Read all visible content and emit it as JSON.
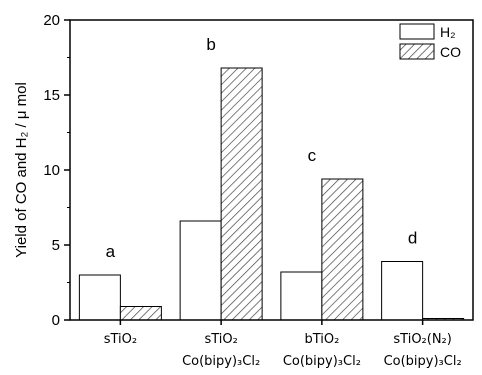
{
  "chart_data": {
    "type": "bar",
    "ylabel": "Yield of CO and H₂ / μ mol",
    "ylim": [
      0,
      20
    ],
    "yticks": [
      "0",
      "5",
      "10",
      "15",
      "20"
    ],
    "categories": [
      {
        "line1": "sTiO₂",
        "line2": ""
      },
      {
        "line1": "sTiO₂",
        "line2": "Co(bipy)₃Cl₂"
      },
      {
        "line1": "bTiO₂",
        "line2": "Co(bipy)₃Cl₂"
      },
      {
        "line1": "sTiO₂(N₂)",
        "line2": "Co(bipy)₃Cl₂"
      }
    ],
    "series": [
      {
        "name": "H₂",
        "fill": "#ffffff",
        "pattern": "none",
        "values": [
          3.0,
          6.6,
          3.2,
          3.9
        ]
      },
      {
        "name": "CO",
        "fill": "hatched",
        "pattern": "diagonal",
        "values": [
          0.9,
          16.8,
          9.4,
          0.1
        ]
      }
    ],
    "annotations": [
      "a",
      "b",
      "c",
      "d"
    ],
    "legend_position": "top-right",
    "grid": false,
    "colors": {
      "bar_stroke": "#000000",
      "hatch": "#444444",
      "background": "#ffffff"
    }
  }
}
